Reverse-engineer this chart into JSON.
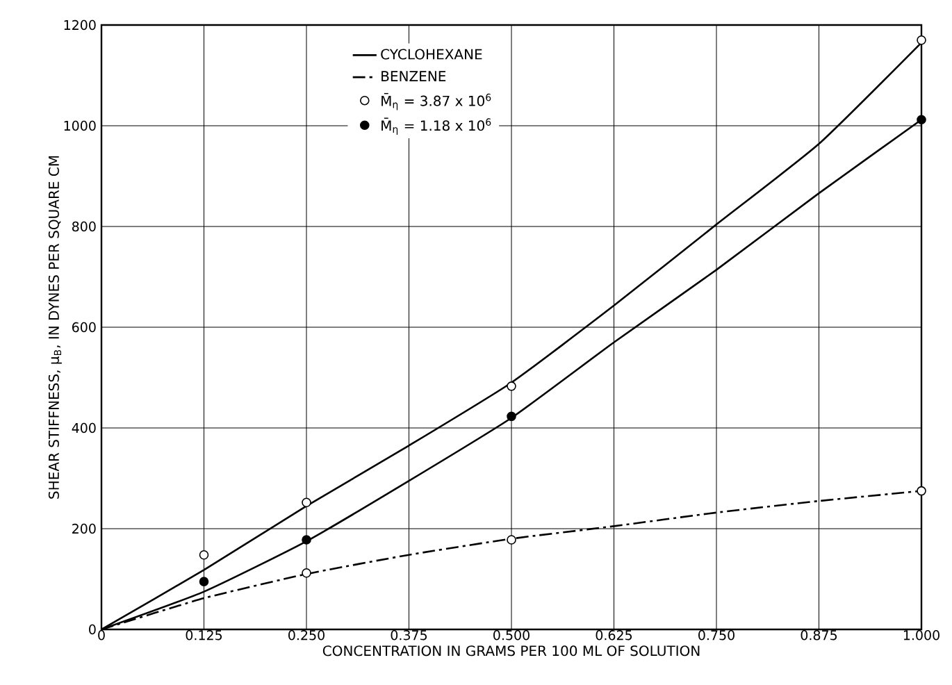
{
  "chart_data": {
    "type": "line",
    "xlabel": "CONCENTRATION IN GRAMS PER 100 ML OF SOLUTION",
    "ylabel": "SHEAR STIFFNESS, μ$_{B}$, IN DYNES PER SQUARE CM",
    "xlim": [
      0,
      1.0
    ],
    "ylim": [
      0,
      1200
    ],
    "xticks": [
      0,
      {
        "value": 0.125,
        "label": "0.125"
      },
      {
        "value": 0.25,
        "label": "0.250"
      },
      {
        "value": 0.375,
        "label": "0.375"
      },
      {
        "value": 0.5,
        "label": "0.500"
      },
      {
        "value": 0.625,
        "label": "0.625"
      },
      {
        "value": 0.75,
        "label": "0.750"
      },
      {
        "value": 0.875,
        "label": "0.875"
      },
      {
        "value": 1.0,
        "label": "1.000"
      }
    ],
    "yticks": [
      0,
      200,
      400,
      600,
      800,
      1000,
      1200
    ],
    "grid": true,
    "legend": "top",
    "series": [
      {
        "name": "CYCLOHEXANE",
        "color": "#000000",
        "line_style": "solid",
        "marker": "none",
        "x": [
          0,
          0.125,
          0.25,
          0.375,
          0.5,
          0.625,
          0.75,
          0.875,
          1.0
        ],
        "values": [
          0,
          118,
          245,
          365,
          490,
          643,
          804,
          964,
          1165
        ]
      },
      {
        "color": "#000000",
        "line_style": "solid",
        "marker": "none",
        "x": [
          0,
          0.125,
          0.25,
          0.375,
          0.5,
          0.625,
          0.75,
          0.875,
          1.0
        ],
        "values": [
          0,
          75,
          175,
          295,
          420,
          570,
          714,
          866,
          1012
        ]
      },
      {
        "name": "BENZENE",
        "color": "#000000",
        "line_style": "dashdot",
        "marker": "none",
        "x": [
          0,
          0.125,
          0.25,
          0.375,
          0.5,
          0.625,
          0.75,
          0.875,
          1.0
        ],
        "values": [
          0,
          62,
          110,
          148,
          180,
          205,
          232,
          255,
          275
        ]
      },
      {
        "name": "M̄$_{η}$ = 3.87 x 10$^{6}$",
        "type": "scatter",
        "color": "#ffffff",
        "marker": "circle",
        "x": [
          0.125,
          0.25,
          0.5,
          1.0,
          0.25,
          0.5,
          1.0
        ],
        "values": [
          148,
          252,
          483,
          1170,
          112,
          178,
          275
        ]
      },
      {
        "name": "M̄$_{η}$ = 1.18 x 10$^{6}$",
        "type": "scatter",
        "color": "#000000",
        "marker": "circle",
        "x": [
          0.125,
          0.25,
          0.5,
          1.0
        ],
        "values": [
          95,
          178,
          423,
          1012
        ]
      }
    ]
  }
}
